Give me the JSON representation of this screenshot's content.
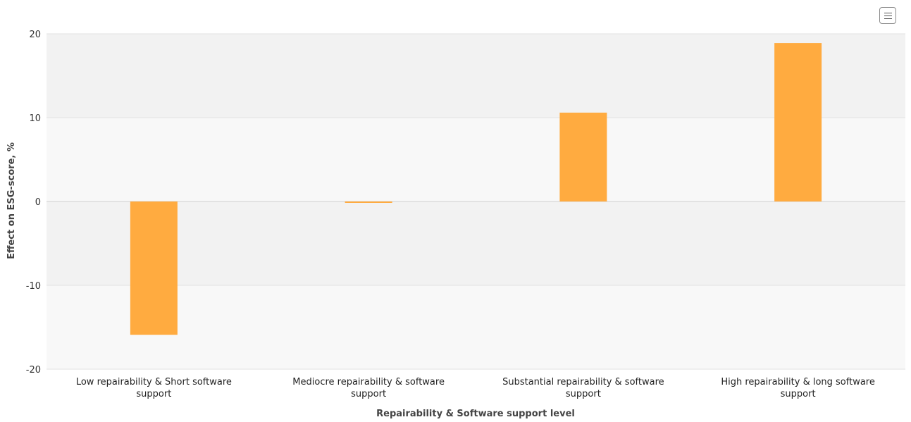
{
  "chart_data": {
    "type": "bar",
    "categories": [
      [
        "Low repairability & Short software",
        "support"
      ],
      [
        "Mediocre repairability & software",
        "support"
      ],
      [
        "Substantial repairability & software",
        "support"
      ],
      [
        "High repairability & long software",
        "support"
      ]
    ],
    "values": [
      -15.9,
      -0.1,
      10.6,
      18.9
    ],
    "xlabel": "Repairability & Software support level",
    "ylabel": "Effect on ESG-score, %",
    "ylim": [
      -20,
      20
    ],
    "yticks": [
      "-20",
      "-10",
      "0",
      "10",
      "20"
    ],
    "grid": true,
    "colors": {
      "bar": "#ffab40",
      "band_dark": "#f2f2f2",
      "band_light": "#f8f8f8",
      "grid": "#e2e2e2"
    }
  },
  "toolbar": {
    "menu_icon": "hamburger-menu-icon"
  }
}
